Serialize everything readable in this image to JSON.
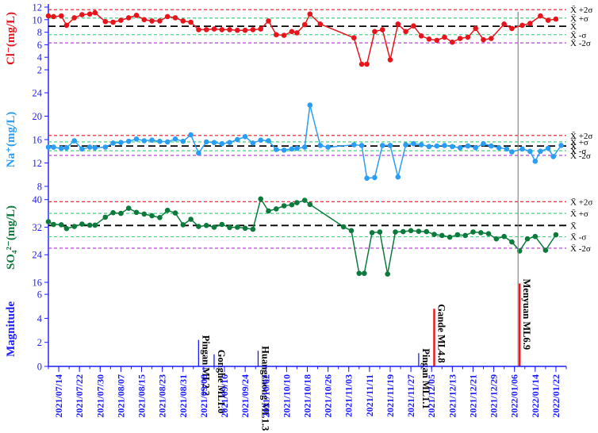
{
  "chart_data": {
    "type": "line",
    "x": [
      "2021/07/14",
      "2021/07/22",
      "2021/07/30",
      "2021/08/07",
      "2021/08/15",
      "2021/08/23",
      "2021/08/31",
      "2021/09/08",
      "2021/09/16",
      "2021/09/24",
      "2021/10/02",
      "2021/10/10",
      "2021/10/18",
      "2021/10/26",
      "2021/11/03",
      "2021/11/11",
      "2021/11/19",
      "2021/11/27",
      "2021/12/05",
      "2021/12/13",
      "2021/12/21",
      "2021/12/29",
      "2022/01/06",
      "2022/01/14",
      "2022/01/22"
    ],
    "x_range": [
      "2021/07/10",
      "2022/01/26"
    ],
    "colors": {
      "axis": "#1a1aff",
      "cl": "#e8141c",
      "na": "#2a9df4",
      "so4": "#0b7a3b",
      "mean_line": "#000000",
      "plus_minus_2sigma": "#e8141c",
      "plus_minus_sigma": "#2ecc71",
      "minus_2sigma": "#b030d0",
      "event_line": "#e8141c",
      "marker_line": "#888888"
    },
    "panels": [
      {
        "id": "cl",
        "ylabel": "Cl⁻(mg/L)",
        "ylim": [
          2,
          12
        ],
        "yticks": [
          2,
          4,
          6,
          8,
          10,
          12
        ],
        "color": "#e8141c",
        "stats": {
          "plus2": 11.6,
          "plus1": 10.25,
          "mean": 8.95,
          "minus1": 7.6,
          "minus2": 6.3
        },
        "series": [
          {
            "date": "2021/07/10",
            "v": 10.6
          },
          {
            "date": "2021/07/12",
            "v": 10.5
          },
          {
            "date": "2021/07/15",
            "v": 10.6
          },
          {
            "date": "2021/07/17",
            "v": 9.1
          },
          {
            "date": "2021/07/20",
            "v": 10.3
          },
          {
            "date": "2021/07/23",
            "v": 10.8
          },
          {
            "date": "2021/07/26",
            "v": 10.9
          },
          {
            "date": "2021/07/28",
            "v": 11.1
          },
          {
            "date": "2021/08/01",
            "v": 9.7
          },
          {
            "date": "2021/08/04",
            "v": 9.6
          },
          {
            "date": "2021/08/07",
            "v": 9.9
          },
          {
            "date": "2021/08/10",
            "v": 10.3
          },
          {
            "date": "2021/08/13",
            "v": 10.7
          },
          {
            "date": "2021/08/16",
            "v": 10.0
          },
          {
            "date": "2021/08/19",
            "v": 9.8
          },
          {
            "date": "2021/08/22",
            "v": 9.8
          },
          {
            "date": "2021/08/25",
            "v": 10.5
          },
          {
            "date": "2021/08/28",
            "v": 10.3
          },
          {
            "date": "2021/08/31",
            "v": 9.8
          },
          {
            "date": "2021/09/03",
            "v": 9.6
          },
          {
            "date": "2021/09/06",
            "v": 8.4
          },
          {
            "date": "2021/09/09",
            "v": 8.4
          },
          {
            "date": "2021/09/12",
            "v": 8.5
          },
          {
            "date": "2021/09/15",
            "v": 8.4
          },
          {
            "date": "2021/09/18",
            "v": 8.4
          },
          {
            "date": "2021/09/21",
            "v": 8.3
          },
          {
            "date": "2021/09/24",
            "v": 8.3
          },
          {
            "date": "2021/09/27",
            "v": 8.4
          },
          {
            "date": "2021/09/30",
            "v": 8.5
          },
          {
            "date": "2021/10/03",
            "v": 9.8
          },
          {
            "date": "2021/10/06",
            "v": 7.6
          },
          {
            "date": "2021/10/09",
            "v": 7.5
          },
          {
            "date": "2021/10/12",
            "v": 8.1
          },
          {
            "date": "2021/10/14",
            "v": 7.9
          },
          {
            "date": "2021/10/17",
            "v": 9.2
          },
          {
            "date": "2021/10/19",
            "v": 10.9
          },
          {
            "date": "2021/10/23",
            "v": 9.3
          },
          {
            "date": "2021/11/05",
            "v": 7.1
          },
          {
            "date": "2021/11/08",
            "v": 2.9
          },
          {
            "date": "2021/11/10",
            "v": 2.9
          },
          {
            "date": "2021/11/13",
            "v": 8.1
          },
          {
            "date": "2021/11/16",
            "v": 8.4
          },
          {
            "date": "2021/11/19",
            "v": 3.6
          },
          {
            "date": "2021/11/22",
            "v": 9.3
          },
          {
            "date": "2021/11/25",
            "v": 8.1
          },
          {
            "date": "2021/11/28",
            "v": 9.0
          },
          {
            "date": "2021/12/01",
            "v": 7.4
          },
          {
            "date": "2021/12/04",
            "v": 6.9
          },
          {
            "date": "2021/12/07",
            "v": 6.7
          },
          {
            "date": "2021/12/10",
            "v": 7.2
          },
          {
            "date": "2021/12/13",
            "v": 6.4
          },
          {
            "date": "2021/12/16",
            "v": 7.0
          },
          {
            "date": "2021/12/19",
            "v": 7.2
          },
          {
            "date": "2021/12/22",
            "v": 8.6
          },
          {
            "date": "2021/12/25",
            "v": 6.8
          },
          {
            "date": "2021/12/28",
            "v": 7.0
          },
          {
            "date": "2022/01/02",
            "v": 9.3
          },
          {
            "date": "2022/01/05",
            "v": 8.6
          },
          {
            "date": "2022/01/09",
            "v": 9.1
          },
          {
            "date": "2022/01/12",
            "v": 9.4
          },
          {
            "date": "2022/01/16",
            "v": 10.6
          },
          {
            "date": "2022/01/19",
            "v": 9.9
          },
          {
            "date": "2022/01/22",
            "v": 10.1
          }
        ]
      },
      {
        "id": "na",
        "ylabel": "Na⁺(mg/L)",
        "ylim": [
          8,
          24
        ],
        "yticks": [
          8,
          12,
          16,
          20,
          24
        ],
        "color": "#2a9df4",
        "stats": {
          "plus2": 16.7,
          "plus1": 15.6,
          "mean": 14.9,
          "minus1": 14.1,
          "minus2": 13.3
        },
        "series": [
          {
            "date": "2021/07/10",
            "v": 14.7
          },
          {
            "date": "2021/07/12",
            "v": 14.7
          },
          {
            "date": "2021/07/15",
            "v": 14.5
          },
          {
            "date": "2021/07/17",
            "v": 14.6
          },
          {
            "date": "2021/07/20",
            "v": 15.8
          },
          {
            "date": "2021/07/23",
            "v": 14.4
          },
          {
            "date": "2021/07/26",
            "v": 14.7
          },
          {
            "date": "2021/07/28",
            "v": 14.6
          },
          {
            "date": "2021/08/01",
            "v": 14.7
          },
          {
            "date": "2021/08/04",
            "v": 15.4
          },
          {
            "date": "2021/08/07",
            "v": 15.5
          },
          {
            "date": "2021/08/10",
            "v": 15.7
          },
          {
            "date": "2021/08/13",
            "v": 16.1
          },
          {
            "date": "2021/08/16",
            "v": 15.8
          },
          {
            "date": "2021/08/19",
            "v": 15.9
          },
          {
            "date": "2021/08/22",
            "v": 15.7
          },
          {
            "date": "2021/08/25",
            "v": 15.6
          },
          {
            "date": "2021/08/28",
            "v": 16.1
          },
          {
            "date": "2021/08/31",
            "v": 15.7
          },
          {
            "date": "2021/09/03",
            "v": 16.8
          },
          {
            "date": "2021/09/06",
            "v": 13.7
          },
          {
            "date": "2021/09/09",
            "v": 15.6
          },
          {
            "date": "2021/09/12",
            "v": 15.5
          },
          {
            "date": "2021/09/15",
            "v": 15.3
          },
          {
            "date": "2021/09/18",
            "v": 15.5
          },
          {
            "date": "2021/09/21",
            "v": 16.0
          },
          {
            "date": "2021/09/24",
            "v": 16.5
          },
          {
            "date": "2021/09/27",
            "v": 15.4
          },
          {
            "date": "2021/09/30",
            "v": 15.9
          },
          {
            "date": "2021/10/03",
            "v": 15.8
          },
          {
            "date": "2021/10/06",
            "v": 14.3
          },
          {
            "date": "2021/10/09",
            "v": 14.2
          },
          {
            "date": "2021/10/12",
            "v": 14.4
          },
          {
            "date": "2021/10/14",
            "v": 14.5
          },
          {
            "date": "2021/10/17",
            "v": 14.7
          },
          {
            "date": "2021/10/19",
            "v": 21.9
          },
          {
            "date": "2021/10/23",
            "v": 15.0
          },
          {
            "date": "2021/10/26",
            "v": 14.7
          },
          {
            "date": "2021/11/05",
            "v": 15.1
          },
          {
            "date": "2021/11/08",
            "v": 15.0
          },
          {
            "date": "2021/11/10",
            "v": 9.4
          },
          {
            "date": "2021/11/13",
            "v": 9.5
          },
          {
            "date": "2021/11/16",
            "v": 15.0
          },
          {
            "date": "2021/11/19",
            "v": 15.0
          },
          {
            "date": "2021/11/22",
            "v": 9.6
          },
          {
            "date": "2021/11/25",
            "v": 15.1
          },
          {
            "date": "2021/11/28",
            "v": 15.3
          },
          {
            "date": "2021/12/01",
            "v": 15.1
          },
          {
            "date": "2021/12/04",
            "v": 14.8
          },
          {
            "date": "2021/12/07",
            "v": 14.9
          },
          {
            "date": "2021/12/10",
            "v": 15.0
          },
          {
            "date": "2021/12/13",
            "v": 14.8
          },
          {
            "date": "2021/12/16",
            "v": 14.6
          },
          {
            "date": "2021/12/19",
            "v": 14.9
          },
          {
            "date": "2021/12/22",
            "v": 14.6
          },
          {
            "date": "2021/12/25",
            "v": 15.3
          },
          {
            "date": "2021/12/28",
            "v": 14.9
          },
          {
            "date": "2021/12/31",
            "v": 14.6
          },
          {
            "date": "2022/01/03",
            "v": 14.4
          },
          {
            "date": "2022/01/05",
            "v": 13.9
          },
          {
            "date": "2022/01/09",
            "v": 14.4
          },
          {
            "date": "2022/01/12",
            "v": 14.0
          },
          {
            "date": "2022/01/14",
            "v": 12.3
          },
          {
            "date": "2022/01/16",
            "v": 14.0
          },
          {
            "date": "2022/01/19",
            "v": 14.5
          },
          {
            "date": "2022/01/21",
            "v": 13.1
          },
          {
            "date": "2022/01/24",
            "v": 15.0
          }
        ]
      },
      {
        "id": "so4",
        "ylabel": "SO₄²⁻(mg/L)",
        "ylim": [
          16,
          42
        ],
        "yticks": [
          16,
          24,
          32,
          40
        ],
        "color": "#0b7a3b",
        "stats": {
          "plus2": 39.4,
          "plus1": 36.0,
          "mean": 32.5,
          "minus1": 29.2,
          "minus2": 25.9
        },
        "series": [
          {
            "date": "2021/07/10",
            "v": 33.6
          },
          {
            "date": "2021/07/12",
            "v": 32.8
          },
          {
            "date": "2021/07/15",
            "v": 32.7
          },
          {
            "date": "2021/07/17",
            "v": 31.6
          },
          {
            "date": "2021/07/20",
            "v": 32.2
          },
          {
            "date": "2021/07/23",
            "v": 32.9
          },
          {
            "date": "2021/07/26",
            "v": 32.6
          },
          {
            "date": "2021/07/28",
            "v": 32.6
          },
          {
            "date": "2021/08/01",
            "v": 34.9
          },
          {
            "date": "2021/08/04",
            "v": 36.2
          },
          {
            "date": "2021/08/07",
            "v": 36.0
          },
          {
            "date": "2021/08/10",
            "v": 37.5
          },
          {
            "date": "2021/08/13",
            "v": 36.3
          },
          {
            "date": "2021/08/16",
            "v": 35.8
          },
          {
            "date": "2021/08/19",
            "v": 35.3
          },
          {
            "date": "2021/08/22",
            "v": 34.8
          },
          {
            "date": "2021/08/25",
            "v": 36.9
          },
          {
            "date": "2021/08/28",
            "v": 36.1
          },
          {
            "date": "2021/08/31",
            "v": 32.7
          },
          {
            "date": "2021/09/03",
            "v": 34.3
          },
          {
            "date": "2021/09/06",
            "v": 32.2
          },
          {
            "date": "2021/09/09",
            "v": 32.5
          },
          {
            "date": "2021/09/12",
            "v": 32.0
          },
          {
            "date": "2021/09/15",
            "v": 32.8
          },
          {
            "date": "2021/09/18",
            "v": 31.9
          },
          {
            "date": "2021/09/21",
            "v": 32.0
          },
          {
            "date": "2021/09/24",
            "v": 31.7
          },
          {
            "date": "2021/09/27",
            "v": 31.4
          },
          {
            "date": "2021/09/30",
            "v": 40.2
          },
          {
            "date": "2021/10/03",
            "v": 36.7
          },
          {
            "date": "2021/10/06",
            "v": 37.3
          },
          {
            "date": "2021/10/09",
            "v": 38.2
          },
          {
            "date": "2021/10/12",
            "v": 38.5
          },
          {
            "date": "2021/10/14",
            "v": 39.1
          },
          {
            "date": "2021/10/17",
            "v": 39.8
          },
          {
            "date": "2021/10/19",
            "v": 38.6
          },
          {
            "date": "2021/11/01",
            "v": 32.1
          },
          {
            "date": "2021/11/04",
            "v": 31.0
          },
          {
            "date": "2021/11/07",
            "v": 18.6
          },
          {
            "date": "2021/11/09",
            "v": 18.6
          },
          {
            "date": "2021/11/12",
            "v": 30.4
          },
          {
            "date": "2021/11/15",
            "v": 30.6
          },
          {
            "date": "2021/11/18",
            "v": 18.4
          },
          {
            "date": "2021/11/21",
            "v": 30.6
          },
          {
            "date": "2021/11/24",
            "v": 30.7
          },
          {
            "date": "2021/11/27",
            "v": 31.0
          },
          {
            "date": "2021/11/30",
            "v": 30.8
          },
          {
            "date": "2021/12/03",
            "v": 30.7
          },
          {
            "date": "2021/12/06",
            "v": 29.9
          },
          {
            "date": "2021/12/09",
            "v": 29.6
          },
          {
            "date": "2021/12/12",
            "v": 29.1
          },
          {
            "date": "2021/12/15",
            "v": 29.8
          },
          {
            "date": "2021/12/18",
            "v": 29.6
          },
          {
            "date": "2021/12/21",
            "v": 30.6
          },
          {
            "date": "2021/12/24",
            "v": 30.4
          },
          {
            "date": "2021/12/27",
            "v": 30.1
          },
          {
            "date": "2021/12/30",
            "v": 28.6
          },
          {
            "date": "2022/01/02",
            "v": 29.3
          },
          {
            "date": "2022/01/05",
            "v": 27.7
          },
          {
            "date": "2022/01/08",
            "v": 25.1
          },
          {
            "date": "2022/01/11",
            "v": 28.6
          },
          {
            "date": "2022/01/14",
            "v": 29.3
          },
          {
            "date": "2022/01/18",
            "v": 25.3
          },
          {
            "date": "2022/01/22",
            "v": 29.8
          }
        ]
      }
    ],
    "stat_labels": {
      "plus2": "X̄ +2σ",
      "plus1": "X̄ +σ",
      "mean": "X̄",
      "minus1": "X̄ -σ",
      "minus2": "X̄ -2σ"
    },
    "magnitude_panel": {
      "ylabel": "Magnitude",
      "ylim": [
        0,
        7
      ],
      "yticks": [
        0,
        2,
        4,
        6
      ],
      "events": [
        {
          "date": "2021/09/06",
          "mag": 2.2,
          "label": "Pingan ML2.2",
          "color": "#1a1aff"
        },
        {
          "date": "2021/09/12",
          "mag": 1.0,
          "label": "Gonghe ML1.0",
          "color": "#1a1aff"
        },
        {
          "date": "2021/09/29",
          "mag": 1.3,
          "label": "Huangzhong ML1.3",
          "color": "#1a1aff"
        },
        {
          "date": "2021/11/30",
          "mag": 1.1,
          "label": "Pingan ML1.1",
          "color": "#1a1aff"
        },
        {
          "date": "2021/12/06",
          "mag": 4.8,
          "label": "Gande ML4.8",
          "color": "#e8141c"
        },
        {
          "date": "2022/01/08",
          "mag": 6.9,
          "label": "Menyuan ML6.9",
          "color": "#e8141c"
        }
      ]
    }
  }
}
